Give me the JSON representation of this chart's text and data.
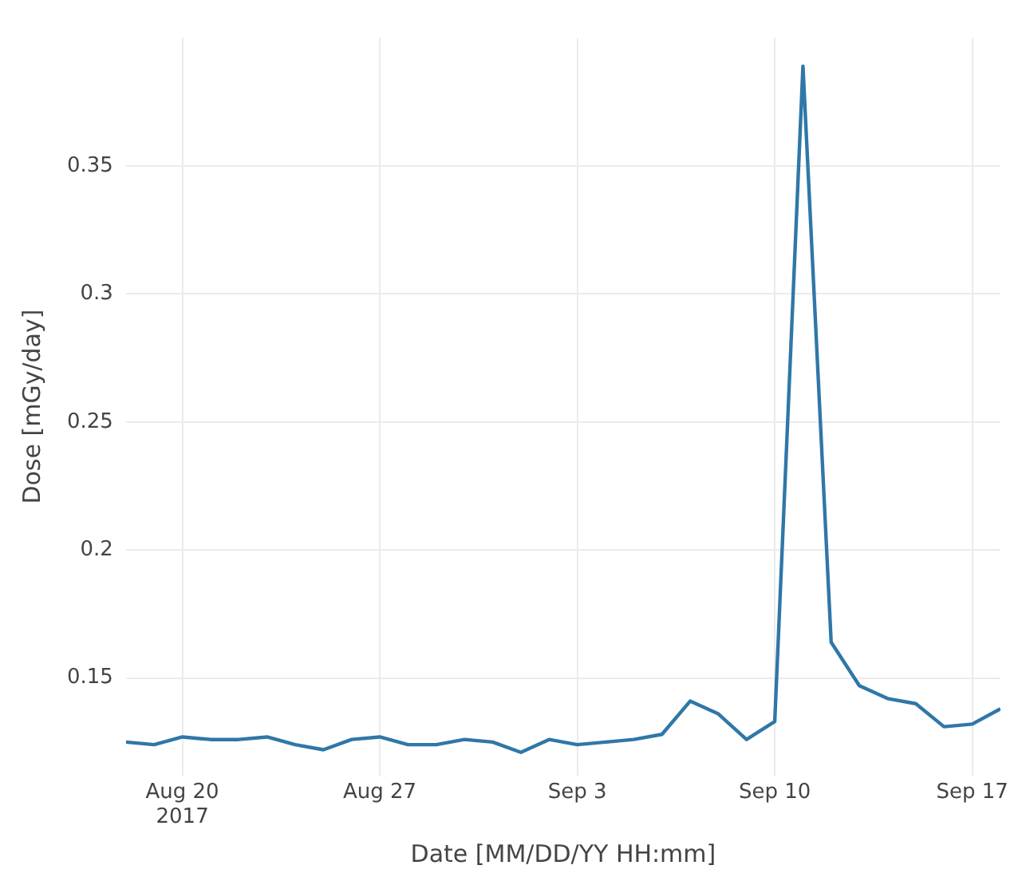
{
  "chart_data": {
    "type": "line",
    "xlabel": "Date [MM/DD/YY HH:mm]",
    "ylabel": "Dose [mGy/day]",
    "x": [
      "2017-08-18",
      "2017-08-19",
      "2017-08-20",
      "2017-08-21",
      "2017-08-22",
      "2017-08-23",
      "2017-08-24",
      "2017-08-25",
      "2017-08-26",
      "2017-08-27",
      "2017-08-28",
      "2017-08-29",
      "2017-08-30",
      "2017-08-31",
      "2017-09-01",
      "2017-09-02",
      "2017-09-03",
      "2017-09-04",
      "2017-09-05",
      "2017-09-06",
      "2017-09-07",
      "2017-09-08",
      "2017-09-09",
      "2017-09-10",
      "2017-09-11",
      "2017-09-12",
      "2017-09-13",
      "2017-09-14",
      "2017-09-15",
      "2017-09-16",
      "2017-09-17",
      "2017-09-18"
    ],
    "series": [
      {
        "color": "#2f77a8",
        "values": [
          0.125,
          0.124,
          0.127,
          0.126,
          0.126,
          0.127,
          0.124,
          0.122,
          0.126,
          0.127,
          0.124,
          0.124,
          0.126,
          0.125,
          0.121,
          0.126,
          0.124,
          0.125,
          0.126,
          0.128,
          0.141,
          0.136,
          0.126,
          0.133,
          0.389,
          0.164,
          0.147,
          0.142,
          0.14,
          0.131,
          0.132,
          0.138
        ]
      }
    ],
    "xlim": [
      "2017-08-18",
      "2017-09-18"
    ],
    "xticks": [
      {
        "value": "2017-08-20",
        "label": "Aug 20\n2017"
      },
      {
        "value": "2017-08-27",
        "label": "Aug 27"
      },
      {
        "value": "2017-09-03",
        "label": "Sep 3"
      },
      {
        "value": "2017-09-10",
        "label": "Sep 10"
      },
      {
        "value": "2017-09-17",
        "label": "Sep 17"
      }
    ],
    "ylim": [
      0.112,
      0.4
    ],
    "yticks": [
      0.15,
      0.2,
      0.25,
      0.3,
      0.35
    ],
    "grid": true,
    "legend": false,
    "marker": "none",
    "line_style": "solid"
  }
}
